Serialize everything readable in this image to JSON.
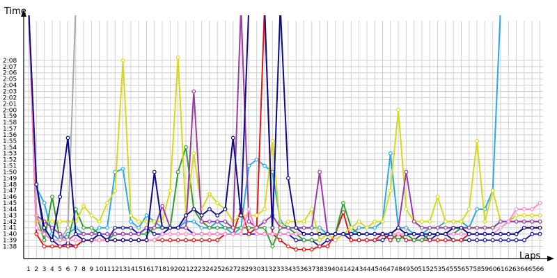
{
  "chart_data": {
    "type": "line",
    "xlabel": "Laps",
    "ylabel": "Time",
    "grid": true,
    "legend": "none",
    "x_categories": [
      1,
      2,
      3,
      4,
      5,
      6,
      7,
      8,
      9,
      10,
      11,
      12,
      13,
      14,
      15,
      16,
      17,
      18,
      19,
      20,
      21,
      22,
      23,
      24,
      25,
      26,
      27,
      28,
      29,
      30,
      31,
      32,
      33,
      34,
      35,
      36,
      37,
      38,
      39,
      40,
      41,
      42,
      43,
      44,
      45,
      46,
      47,
      48,
      49,
      50,
      51,
      52,
      53,
      54,
      55,
      56,
      57,
      58,
      59,
      60,
      61,
      62,
      63,
      64,
      65,
      66
    ],
    "x_tick_labels": [
      "1",
      "2",
      "3",
      "4",
      "5",
      "6",
      "7",
      "8",
      "9",
      "10",
      "11",
      "12",
      "13",
      "14",
      "15",
      "16",
      "17",
      "18",
      "19",
      "20",
      "21",
      "22",
      "23",
      "24",
      "25",
      "26",
      "27",
      "28",
      "29",
      "30",
      "31",
      "32",
      "33",
      "34",
      "35",
      "36",
      "37",
      "38",
      "39",
      "40",
      "41",
      "42",
      "43",
      "44",
      "45",
      "46",
      "47",
      "48",
      "49",
      "50",
      "51",
      "52",
      "53",
      "54",
      "55",
      "56",
      "57",
      "58",
      "59",
      "60",
      "61",
      "62",
      "63",
      "64",
      "65",
      "66"
    ],
    "y_tick_labels": [
      "1:38",
      "1:39",
      "1:40",
      "1:41",
      "1:42",
      "1:43",
      "1:44",
      "1:45",
      "1:46",
      "1:47",
      "1:48",
      "1:49",
      "1:50",
      "1:51",
      "1:52",
      "1:53",
      "1:54",
      "1:55",
      "1:56",
      "1:57",
      "1:58",
      "1:59",
      "2:00",
      "2:01",
      "2:02",
      "2:03",
      "2:04",
      "2:05",
      "2:06",
      "2:07",
      "2:08"
    ],
    "ylim_seconds": [
      97,
      150
    ],
    "series": [
      {
        "color": "#1a1aa8",
        "values": [
          155,
          108,
          100,
          99,
          98,
          98.5,
          98,
          99,
          99,
          100,
          99,
          101,
          101,
          101,
          100,
          101,
          100,
          100,
          101,
          101,
          101,
          100,
          100,
          100,
          100,
          100,
          100,
          100,
          100,
          100,
          100,
          100,
          100,
          100,
          99,
          99,
          99,
          98,
          99,
          99,
          100,
          99,
          99,
          99,
          99,
          99,
          100,
          99,
          100,
          99,
          100,
          99,
          100,
          100,
          99,
          99,
          99,
          99,
          99,
          99,
          99,
          99,
          99,
          99,
          100,
          100
        ]
      },
      {
        "color": "#2aa7e8",
        "values": [
          155,
          107.5,
          105,
          100,
          99,
          100,
          101,
          100,
          100,
          101,
          101,
          110,
          110.5,
          102,
          101,
          103,
          102,
          101,
          101,
          101,
          102,
          102,
          101,
          101,
          102,
          101,
          100,
          101,
          111,
          112,
          111,
          110,
          102,
          101,
          101,
          101,
          101,
          101,
          100,
          100,
          100,
          100,
          101,
          101,
          101,
          102,
          113,
          101,
          101,
          100,
          100,
          101,
          101,
          102,
          102,
          102,
          101,
          104,
          104,
          107,
          155,
          155,
          155,
          155,
          155,
          155
        ]
      },
      {
        "color": "#e01515",
        "values": [
          155,
          100,
          98,
          98,
          98,
          98,
          98,
          99,
          99,
          99,
          99,
          99,
          99,
          99,
          99,
          99,
          99,
          99,
          99,
          99,
          99,
          99,
          99,
          99,
          99,
          100,
          100,
          104,
          100,
          101,
          155,
          100,
          99,
          98,
          97.5,
          97.5,
          97.5,
          98,
          98,
          100,
          103.5,
          99,
          99,
          99,
          99,
          100,
          99,
          100,
          99,
          99,
          99,
          99,
          99,
          99,
          99,
          99,
          100,
          100,
          100,
          100,
          100,
          100,
          100,
          101,
          101,
          101
        ]
      },
      {
        "color": "#2e9e2e",
        "values": [
          155,
          103,
          99,
          106,
          99,
          99,
          104,
          101,
          101,
          100,
          99,
          100,
          100,
          100,
          100,
          100,
          101,
          101,
          101,
          110,
          114,
          104,
          102,
          101,
          101,
          101,
          101,
          101,
          101,
          101,
          101,
          98,
          101,
          101,
          100,
          99,
          99,
          99,
          100,
          100,
          105,
          101,
          100,
          100,
          100,
          100,
          100,
          99,
          100,
          99,
          99,
          100,
          100,
          100,
          100,
          101,
          101,
          101,
          101,
          101,
          102,
          102,
          102,
          102,
          102,
          102
        ]
      },
      {
        "color": "#d8d81a",
        "values": [
          155,
          102,
          102,
          102,
          102,
          102,
          102,
          104.5,
          103,
          102,
          105,
          107,
          128,
          103,
          102,
          102,
          102,
          102,
          107,
          128.5,
          103,
          113,
          104,
          106.5,
          105,
          104,
          102,
          103,
          103,
          103,
          104,
          115,
          101,
          102,
          102,
          102,
          104,
          99,
          100,
          99,
          100,
          101,
          102,
          101,
          102,
          102,
          107,
          120,
          104,
          102,
          102,
          102,
          106,
          102,
          102,
          102,
          104,
          115,
          102,
          107,
          102,
          102,
          103,
          103,
          103,
          103
        ]
      },
      {
        "color": "#9a3aa3",
        "values": [
          155,
          103,
          102,
          101,
          100,
          99,
          100,
          100,
          100,
          100,
          100,
          100,
          100,
          100,
          100,
          101,
          101,
          104.5,
          101,
          101,
          101,
          123,
          102,
          102,
          102,
          102,
          101,
          155,
          102,
          101,
          102,
          103,
          101,
          101,
          101,
          101,
          101,
          110,
          100,
          100,
          100,
          100,
          100,
          100,
          100,
          100,
          100,
          101,
          110,
          102,
          101,
          101,
          101,
          101,
          101,
          101,
          101,
          101,
          101,
          101,
          102,
          102,
          102,
          102,
          102,
          102
        ]
      },
      {
        "color": "#a8a8a8",
        "values": [
          155,
          103,
          100,
          99,
          99,
          101,
          155,
          155,
          155,
          155,
          155,
          155,
          155,
          155,
          155,
          155,
          155,
          155,
          155,
          155,
          155,
          155,
          155,
          155,
          155,
          155,
          155,
          155,
          155,
          155,
          155,
          155,
          155,
          155,
          155,
          155,
          155,
          155,
          155,
          155,
          155,
          155,
          155,
          155,
          155,
          155,
          155,
          155,
          155,
          155,
          155,
          155,
          155,
          155,
          155,
          155,
          155,
          155,
          155,
          155,
          155,
          155,
          155,
          155,
          155,
          155
        ]
      },
      {
        "color": "#ff88cc",
        "values": [
          155,
          101,
          100,
          99,
          99,
          99,
          99,
          99,
          99,
          99,
          99,
          99,
          99,
          99,
          99,
          99,
          99,
          100,
          100,
          100,
          100,
          100,
          100,
          100,
          100,
          100,
          100,
          100,
          104,
          100,
          100,
          100,
          100,
          100,
          100,
          100,
          100,
          100,
          100,
          100,
          100,
          100,
          100,
          100,
          100,
          100,
          100,
          100,
          100,
          100,
          100,
          100,
          100,
          100,
          100,
          100,
          100,
          100,
          100,
          100,
          101,
          102,
          104,
          104,
          104,
          105
        ]
      },
      {
        "color": "#0a0a8a",
        "values": [
          155,
          108,
          101,
          99,
          106,
          115.5,
          100,
          99,
          99,
          100,
          99,
          99,
          99,
          99,
          99,
          99,
          110,
          101,
          101,
          101,
          103,
          104,
          103,
          104,
          103,
          104,
          115.5,
          103,
          155,
          155,
          155,
          101,
          155,
          109,
          101,
          100,
          100,
          100,
          100,
          100,
          100,
          100,
          100,
          100,
          100,
          100,
          100,
          101,
          100,
          100,
          100,
          100,
          100,
          100,
          101,
          101,
          100,
          100,
          100,
          100,
          100,
          100,
          100,
          101,
          101,
          101
        ]
      }
    ]
  }
}
